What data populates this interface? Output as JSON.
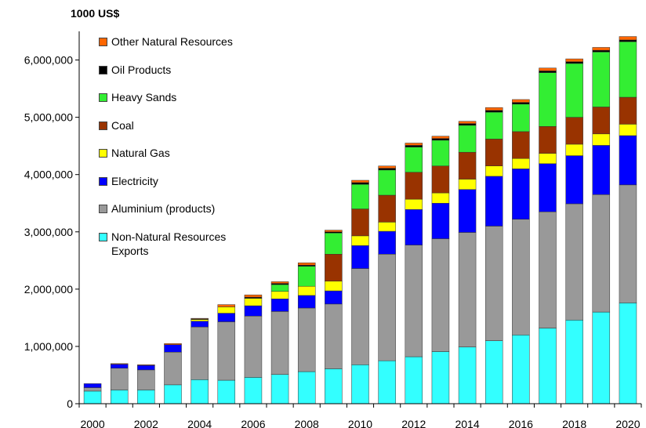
{
  "chart_data": {
    "type": "stacked-bar",
    "y_label": "1000 US$",
    "categories": [
      "2000",
      null,
      "2002",
      null,
      "2004",
      null,
      "2006",
      null,
      "2008",
      null,
      "2010",
      null,
      "2012",
      null,
      "2014",
      null,
      "2016",
      null,
      "2018",
      null,
      "2020"
    ],
    "ylim": [
      0,
      6500000
    ],
    "yticks": [
      0,
      {
        "value": 1000000,
        "label": "1,000,000"
      },
      {
        "value": 2000000,
        "label": "2,000,000"
      },
      {
        "value": 3000000,
        "label": "3,000,000"
      },
      {
        "value": 4000000,
        "label": "4,000,000"
      },
      {
        "value": 5000000,
        "label": "5,000,000"
      },
      {
        "value": 6000000,
        "label": "6,000,000"
      }
    ],
    "series": [
      {
        "name": "Non-Natural Resources Exports",
        "color": "#33ffff",
        "values": [
          220000,
          240000,
          240000,
          330000,
          420000,
          410000,
          460000,
          510000,
          560000,
          610000,
          680000,
          750000,
          820000,
          910000,
          990000,
          1100000,
          1200000,
          1320000,
          1460000,
          1600000,
          1760000
        ]
      },
      {
        "name": "Aluminium (products)",
        "color": "#999999",
        "values": [
          60000,
          380000,
          350000,
          570000,
          920000,
          1020000,
          1070000,
          1100000,
          1110000,
          1130000,
          1680000,
          1860000,
          1950000,
          1970000,
          2000000,
          2000000,
          2020000,
          2030000,
          2030000,
          2050000,
          2060000
        ]
      },
      {
        "name": "Electricity",
        "color": "#0000ff",
        "values": [
          70000,
          70000,
          80000,
          130000,
          100000,
          150000,
          180000,
          220000,
          220000,
          230000,
          400000,
          400000,
          620000,
          620000,
          750000,
          870000,
          880000,
          840000,
          840000,
          860000,
          860000
        ]
      },
      {
        "name": "Natural Gas",
        "color": "#ffff00",
        "values": [
          0,
          0,
          0,
          0,
          30000,
          110000,
          130000,
          130000,
          160000,
          170000,
          170000,
          160000,
          180000,
          180000,
          180000,
          180000,
          180000,
          180000,
          200000,
          200000,
          200000
        ]
      },
      {
        "name": "Coal",
        "color": "#993300",
        "values": [
          0,
          0,
          0,
          0,
          0,
          0,
          0,
          0,
          0,
          470000,
          470000,
          470000,
          470000,
          470000,
          470000,
          470000,
          470000,
          470000,
          470000,
          470000,
          470000
        ]
      },
      {
        "name": "Heavy Sands",
        "color": "#33ee33",
        "values": [
          0,
          0,
          0,
          0,
          0,
          0,
          0,
          120000,
          350000,
          370000,
          430000,
          440000,
          440000,
          450000,
          470000,
          470000,
          480000,
          940000,
          940000,
          960000,
          970000
        ]
      },
      {
        "name": "Oil Products",
        "color": "#000000",
        "values": [
          0,
          0,
          0,
          0,
          10000,
          0,
          20000,
          20000,
          20000,
          20000,
          30000,
          30000,
          30000,
          30000,
          30000,
          30000,
          30000,
          30000,
          30000,
          30000,
          30000
        ]
      },
      {
        "name": "Other Natural Resources",
        "color": "#ff6600",
        "values": [
          0,
          10000,
          10000,
          20000,
          10000,
          40000,
          40000,
          30000,
          40000,
          30000,
          40000,
          40000,
          40000,
          40000,
          40000,
          50000,
          50000,
          50000,
          50000,
          50000,
          60000
        ]
      }
    ]
  }
}
